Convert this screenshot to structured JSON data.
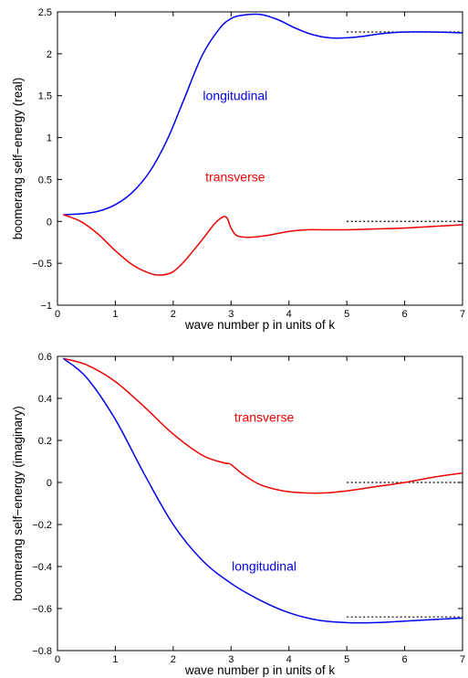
{
  "chart_data": [
    {
      "type": "line",
      "xlabel": "wave number p in units of k",
      "ylabel": "boomerang self−energy (real)",
      "xlim": [
        0,
        7
      ],
      "ylim": [
        -1,
        2.5
      ],
      "xticks": [
        0,
        1,
        2,
        3,
        4,
        5,
        6,
        7
      ],
      "yticks": [
        -1,
        -0.5,
        0,
        0.5,
        1,
        1.5,
        2,
        2.5
      ],
      "xtick_labels": [
        "0",
        "1",
        "2",
        "3",
        "4",
        "5",
        "6",
        "7"
      ],
      "ytick_labels": [
        "−1",
        "−0.5",
        "0",
        "0.5",
        "1",
        "1.5",
        "2",
        "2.5"
      ],
      "grid": false,
      "series": [
        {
          "name": "longitudinal",
          "color": "#0000ee",
          "x": [
            0.1,
            0.4,
            0.7,
            1.0,
            1.3,
            1.6,
            1.9,
            2.2,
            2.5,
            2.8,
            3.0,
            3.2,
            3.5,
            3.8,
            4.1,
            4.4,
            4.7,
            5.0,
            5.3,
            5.6,
            6.0,
            6.5,
            7.0
          ],
          "y": [
            0.08,
            0.09,
            0.12,
            0.2,
            0.35,
            0.6,
            0.98,
            1.48,
            1.98,
            2.3,
            2.42,
            2.46,
            2.47,
            2.41,
            2.31,
            2.23,
            2.19,
            2.19,
            2.21,
            2.24,
            2.26,
            2.26,
            2.25
          ]
        },
        {
          "name": "transverse",
          "color": "#ee0000",
          "x": [
            0.1,
            0.4,
            0.7,
            1.0,
            1.3,
            1.6,
            1.8,
            2.0,
            2.2,
            2.5,
            2.7,
            2.85,
            2.93,
            3.0,
            3.1,
            3.3,
            3.6,
            4.0,
            4.3,
            4.6,
            5.0,
            5.5,
            6.0,
            6.5,
            7.0
          ],
          "y": [
            0.08,
            0.0,
            -0.15,
            -0.35,
            -0.52,
            -0.62,
            -0.64,
            -0.6,
            -0.47,
            -0.22,
            -0.04,
            0.05,
            0.04,
            -0.08,
            -0.17,
            -0.19,
            -0.17,
            -0.12,
            -0.1,
            -0.1,
            -0.1,
            -0.09,
            -0.08,
            -0.06,
            -0.04
          ]
        }
      ],
      "reference_lines": [
        {
          "style": "dotted",
          "color": "#000000",
          "x": [
            5,
            7
          ],
          "y": [
            2.26,
            2.26
          ]
        },
        {
          "style": "dotted",
          "color": "#000000",
          "x": [
            5,
            7
          ],
          "y": [
            0,
            0
          ]
        }
      ],
      "annotations": [
        {
          "text": "longitudinal",
          "color": "#0000ee",
          "x": 2.0,
          "y": 1.45
        },
        {
          "text": "transverse",
          "color": "#ee0000",
          "x": 2.0,
          "y": 0.48
        }
      ]
    },
    {
      "type": "line",
      "xlabel": "wave number p in units of k",
      "ylabel": "boomerang self−energy (imaginary)",
      "xlim": [
        0,
        7
      ],
      "ylim": [
        -0.8,
        0.6
      ],
      "xticks": [
        0,
        1,
        2,
        3,
        4,
        5,
        6,
        7
      ],
      "yticks": [
        -0.8,
        -0.6,
        -0.4,
        -0.2,
        0,
        0.2,
        0.4,
        0.6
      ],
      "xtick_labels": [
        "0",
        "1",
        "2",
        "3",
        "4",
        "5",
        "6",
        "7"
      ],
      "ytick_labels": [
        "−0.8",
        "−0.6",
        "−0.4",
        "−0.2",
        "0",
        "0.2",
        "0.4",
        "0.6"
      ],
      "grid": false,
      "series": [
        {
          "name": "transverse",
          "color": "#ee0000",
          "x": [
            0.1,
            0.5,
            1.0,
            1.5,
            2.0,
            2.5,
            2.85,
            2.95,
            3.0,
            3.2,
            3.5,
            3.9,
            4.3,
            4.6,
            5.0,
            5.5,
            6.0,
            6.5,
            7.0
          ],
          "y": [
            0.59,
            0.56,
            0.48,
            0.36,
            0.23,
            0.13,
            0.095,
            0.09,
            0.085,
            0.04,
            -0.01,
            -0.04,
            -0.05,
            -0.05,
            -0.04,
            -0.02,
            0.0,
            0.025,
            0.045
          ]
        },
        {
          "name": "longitudinal",
          "color": "#0000ee",
          "x": [
            0.1,
            0.5,
            1.0,
            1.5,
            2.0,
            2.5,
            3.0,
            3.5,
            4.0,
            4.5,
            5.0,
            5.5,
            6.0,
            6.5,
            7.0
          ],
          "y": [
            0.59,
            0.5,
            0.3,
            0.04,
            -0.2,
            -0.37,
            -0.48,
            -0.56,
            -0.62,
            -0.655,
            -0.667,
            -0.667,
            -0.66,
            -0.652,
            -0.645
          ]
        }
      ],
      "reference_lines": [
        {
          "style": "dotted",
          "color": "#000000",
          "x": [
            5,
            7
          ],
          "y": [
            0,
            0
          ]
        },
        {
          "style": "dotted",
          "color": "#000000",
          "x": [
            5,
            7
          ],
          "y": [
            -0.64,
            -0.64
          ]
        }
      ],
      "annotations": [
        {
          "text": "transverse",
          "color": "#ee0000",
          "x": 2.5,
          "y": 0.29
        },
        {
          "text": "longitudinal",
          "color": "#0000ee",
          "x": 2.5,
          "y": -0.42
        }
      ]
    }
  ]
}
